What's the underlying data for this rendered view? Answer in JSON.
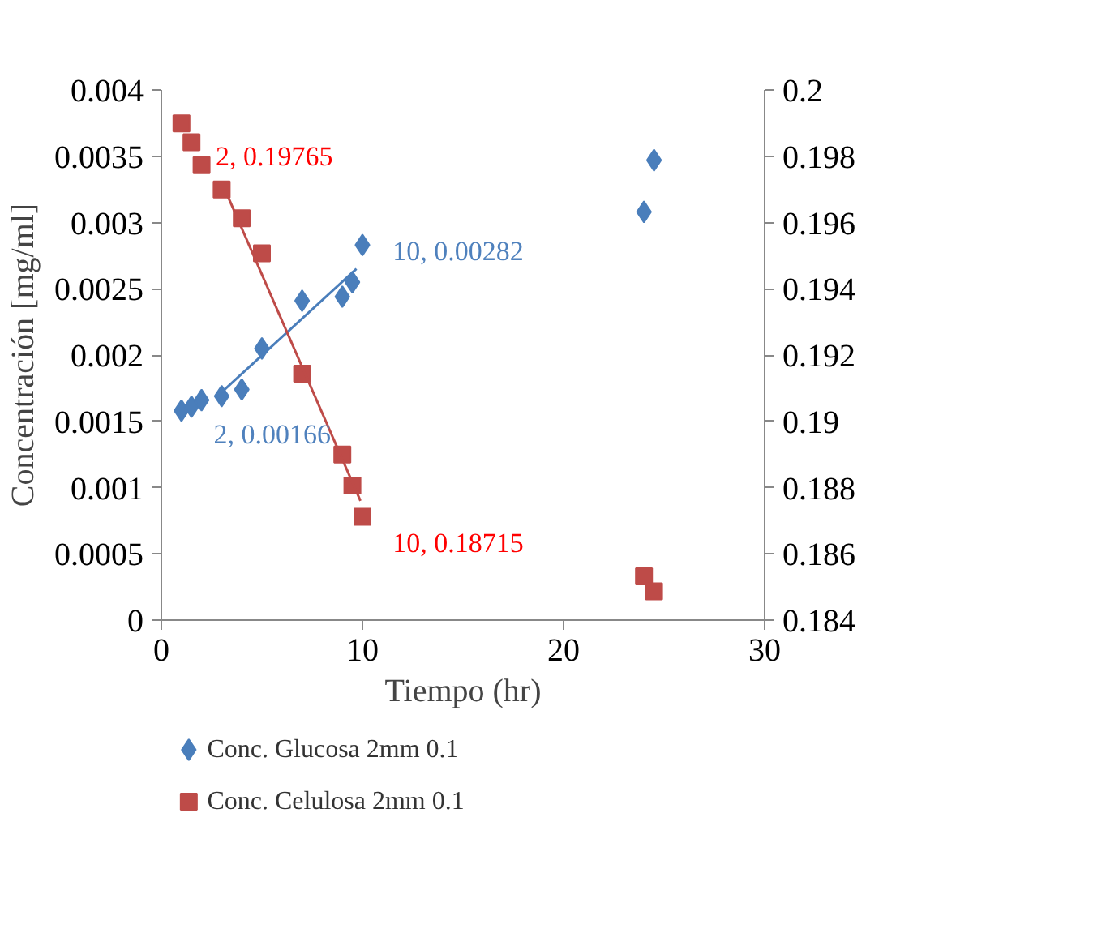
{
  "chart_data": {
    "type": "scatter",
    "xlabel": "Tiempo (hr)",
    "ylabel": "Concentración [mg/ml]",
    "xlim": [
      0,
      30
    ],
    "xticks": [
      0,
      10,
      20,
      30
    ],
    "ylim": [
      0,
      0.004
    ],
    "yticks": [
      0,
      0.0005,
      0.001,
      0.0015,
      0.002,
      0.0025,
      0.003,
      0.0035,
      0.004
    ],
    "y2lim": [
      0.184,
      0.2
    ],
    "y2ticks": [
      0.184,
      0.186,
      0.188,
      0.19,
      0.192,
      0.194,
      0.196,
      0.198,
      0.2
    ],
    "grid": false,
    "legend": "bottom",
    "series": [
      {
        "name": "Conc. Glucosa 2mm 0.1",
        "color": "#4a7ebb",
        "marker": "diamond",
        "x": [
          1,
          1.5,
          2,
          3,
          4,
          5,
          7,
          9,
          9.5,
          10,
          24,
          24.5
        ],
        "values": [
          0.00158,
          0.00161,
          0.00166,
          0.00169,
          0.00174,
          0.00205,
          0.00241,
          0.00244,
          0.00255,
          0.00283,
          0.00308,
          0.00347
        ]
      },
      {
        "name": "Conc. Celulosa 2mm 0.1",
        "color": "#be4b48",
        "marker": "square",
        "axis": "y2",
        "x": [
          1,
          1.5,
          2,
          3,
          4,
          5,
          7,
          9,
          9.5,
          10,
          24,
          24.5
        ],
        "values": [
          0.19899,
          0.19842,
          0.19773,
          0.197,
          0.19613,
          0.19507,
          0.19144,
          0.189,
          0.18806,
          0.18712,
          0.18532,
          0.18487
        ]
      },
      {
        "type": "line",
        "color": "#4a7ebb",
        "x": [
          3,
          9.7
        ],
        "values": [
          0.00172,
          0.00265
        ]
      },
      {
        "type": "line",
        "color": "#be4b48",
        "axis": "y2",
        "x": [
          3.3,
          9.9
        ],
        "values": [
          0.1968,
          0.1876
        ]
      }
    ],
    "annotations": [
      "2, 0.19765",
      "10, 0.00282",
      "2, 0.00166",
      "10, 0.18715"
    ]
  }
}
